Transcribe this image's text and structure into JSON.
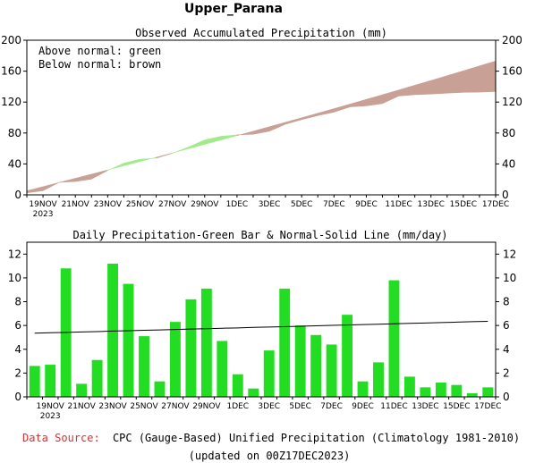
{
  "title": "Upper_Parana",
  "footer": {
    "source_label": "Data Source:",
    "source_text": "CPC (Gauge-Based) Unified Precipitation (Climatology 1981-2010)",
    "updated": "(updated on 00Z17DEC2023)"
  },
  "colors": {
    "above": "#a0eb8c",
    "below": "#c8a096",
    "bar": "#22dd22",
    "source_label": "#e03030"
  },
  "chart_data": [
    {
      "type": "area",
      "title": "Observed Accumulated Precipitation (mm)",
      "legend": [
        "Above normal: green",
        "Below normal: brown"
      ],
      "legend_placement": "top-left",
      "ylim": [
        0,
        200
      ],
      "yticks": [
        "0",
        "40",
        "80",
        "120",
        "160",
        "200"
      ],
      "xtick_labels": [
        "19NOV",
        "21NOV",
        "23NOV",
        "25NOV",
        "27NOV",
        "29NOV",
        "1DEC",
        "3DEC",
        "5DEC",
        "7DEC",
        "9DEC",
        "11DEC",
        "13DEC",
        "15DEC",
        "17DEC"
      ],
      "xtick_sub": "2023",
      "x": [
        "18NOV",
        "19NOV",
        "20NOV",
        "21NOV",
        "22NOV",
        "23NOV",
        "24NOV",
        "25NOV",
        "26NOV",
        "27NOV",
        "28NOV",
        "29NOV",
        "30NOV",
        "1DEC",
        "2DEC",
        "3DEC",
        "4DEC",
        "5DEC",
        "6DEC",
        "7DEC",
        "8DEC",
        "9DEC",
        "10DEC",
        "11DEC",
        "12DEC",
        "13DEC",
        "14DEC",
        "15DEC",
        "16DEC",
        "17DEC"
      ],
      "series": [
        {
          "name": "Observed",
          "values": [
            2.6,
            5.3,
            16.1,
            17.2,
            20.3,
            31.5,
            41.0,
            46.1,
            47.4,
            53.7,
            61.9,
            71.0,
            75.7,
            77.6,
            78.3,
            82.2,
            91.3,
            97.3,
            102.5,
            106.9,
            113.8,
            115.1,
            118.0,
            127.8,
            129.5,
            130.3,
            131.5,
            132.5,
            132.8,
            133.6
          ]
        },
        {
          "name": "Normal",
          "values": [
            5.3,
            10.6,
            16.0,
            21.4,
            26.8,
            32.2,
            37.6,
            43.1,
            48.6,
            54.1,
            59.7,
            65.3,
            70.9,
            76.6,
            82.3,
            88.1,
            93.9,
            99.7,
            105.6,
            111.5,
            117.5,
            123.5,
            129.5,
            135.6,
            141.8,
            147.9,
            154.2,
            160.4,
            166.8,
            173.1
          ]
        }
      ]
    },
    {
      "type": "bar",
      "title": "Daily Precipitation-Green Bar & Normal-Solid Line (mm/day)",
      "ylim": [
        0,
        13
      ],
      "yticks": [
        "0",
        "2",
        "4",
        "6",
        "8",
        "10",
        "12"
      ],
      "xtick_labels": [
        "19NOV",
        "21NOV",
        "23NOV",
        "25NOV",
        "27NOV",
        "29NOV",
        "1DEC",
        "3DEC",
        "5DEC",
        "7DEC",
        "9DEC",
        "11DEC",
        "13DEC",
        "15DEC",
        "17DEC"
      ],
      "xtick_sub": "2023",
      "x": [
        "18NOV",
        "19NOV",
        "20NOV",
        "21NOV",
        "22NOV",
        "23NOV",
        "24NOV",
        "25NOV",
        "26NOV",
        "27NOV",
        "28NOV",
        "29NOV",
        "30NOV",
        "1DEC",
        "2DEC",
        "3DEC",
        "4DEC",
        "5DEC",
        "6DEC",
        "7DEC",
        "8DEC",
        "9DEC",
        "10DEC",
        "11DEC",
        "12DEC",
        "13DEC",
        "14DEC",
        "15DEC",
        "16DEC",
        "17DEC"
      ],
      "series": [
        {
          "name": "Daily Precipitation",
          "values": [
            2.6,
            2.7,
            10.8,
            1.1,
            3.1,
            11.2,
            9.5,
            5.1,
            1.3,
            6.3,
            8.2,
            9.1,
            4.7,
            1.9,
            0.7,
            3.9,
            9.1,
            6.0,
            5.2,
            4.4,
            6.9,
            1.3,
            2.9,
            9.8,
            1.7,
            0.8,
            1.2,
            1.0,
            0.3,
            0.8
          ]
        },
        {
          "name": "Normal",
          "values": [
            5.35,
            5.39,
            5.42,
            5.46,
            5.49,
            5.53,
            5.56,
            5.6,
            5.63,
            5.66,
            5.7,
            5.73,
            5.77,
            5.8,
            5.84,
            5.87,
            5.9,
            5.94,
            5.97,
            6.01,
            6.04,
            6.08,
            6.11,
            6.14,
            6.18,
            6.21,
            6.25,
            6.28,
            6.32,
            6.35
          ]
        }
      ]
    }
  ]
}
